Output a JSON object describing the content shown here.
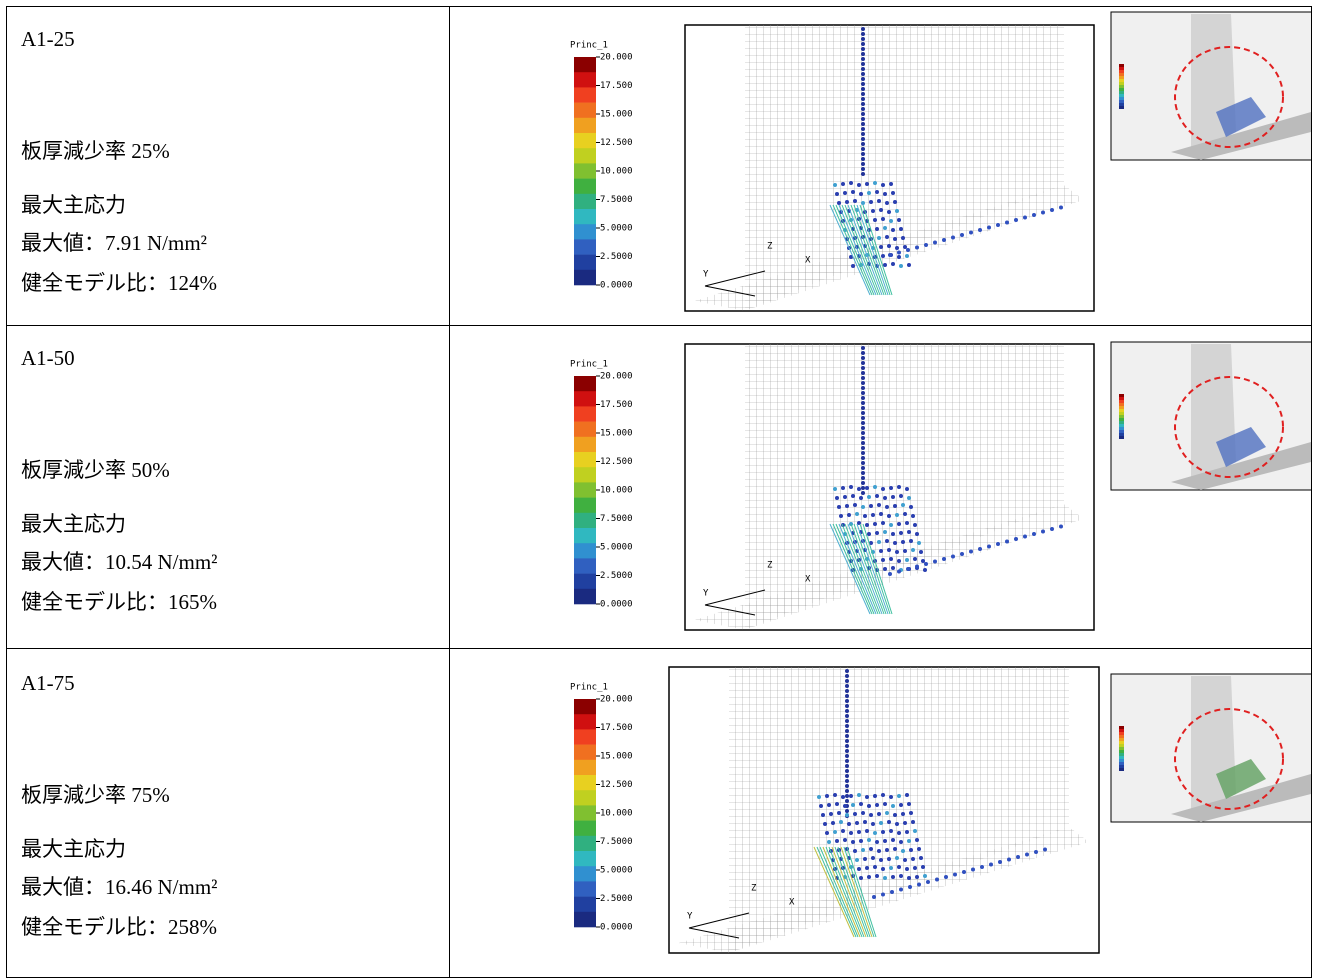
{
  "rows": [
    {
      "id": "A1-25",
      "reduction": "板厚減少率 25%",
      "stress_label": "最大主応力",
      "max_value": "最大値：7.91 N/mm²",
      "ratio": "健全モデル比：124%"
    },
    {
      "id": "A1-50",
      "reduction": "板厚減少率 50%",
      "stress_label": "最大主応力",
      "max_value": "最大値：10.54 N/mm²",
      "ratio": "健全モデル比：165%"
    },
    {
      "id": "A1-75",
      "reduction": "板厚減少率 75%",
      "stress_label": "最大主応力",
      "max_value": "最大値：16.46 N/mm²",
      "ratio": "健全モデル比：258%"
    }
  ],
  "legend": {
    "title": "Princ_1",
    "ticks": [
      "20.000",
      "17.500",
      "15.000",
      "12.500",
      "10.000",
      "7.5000",
      "5.0000",
      "2.5000",
      "0.0000"
    ]
  },
  "axes": {
    "y": "Y",
    "z": "Z",
    "x": "X"
  }
}
